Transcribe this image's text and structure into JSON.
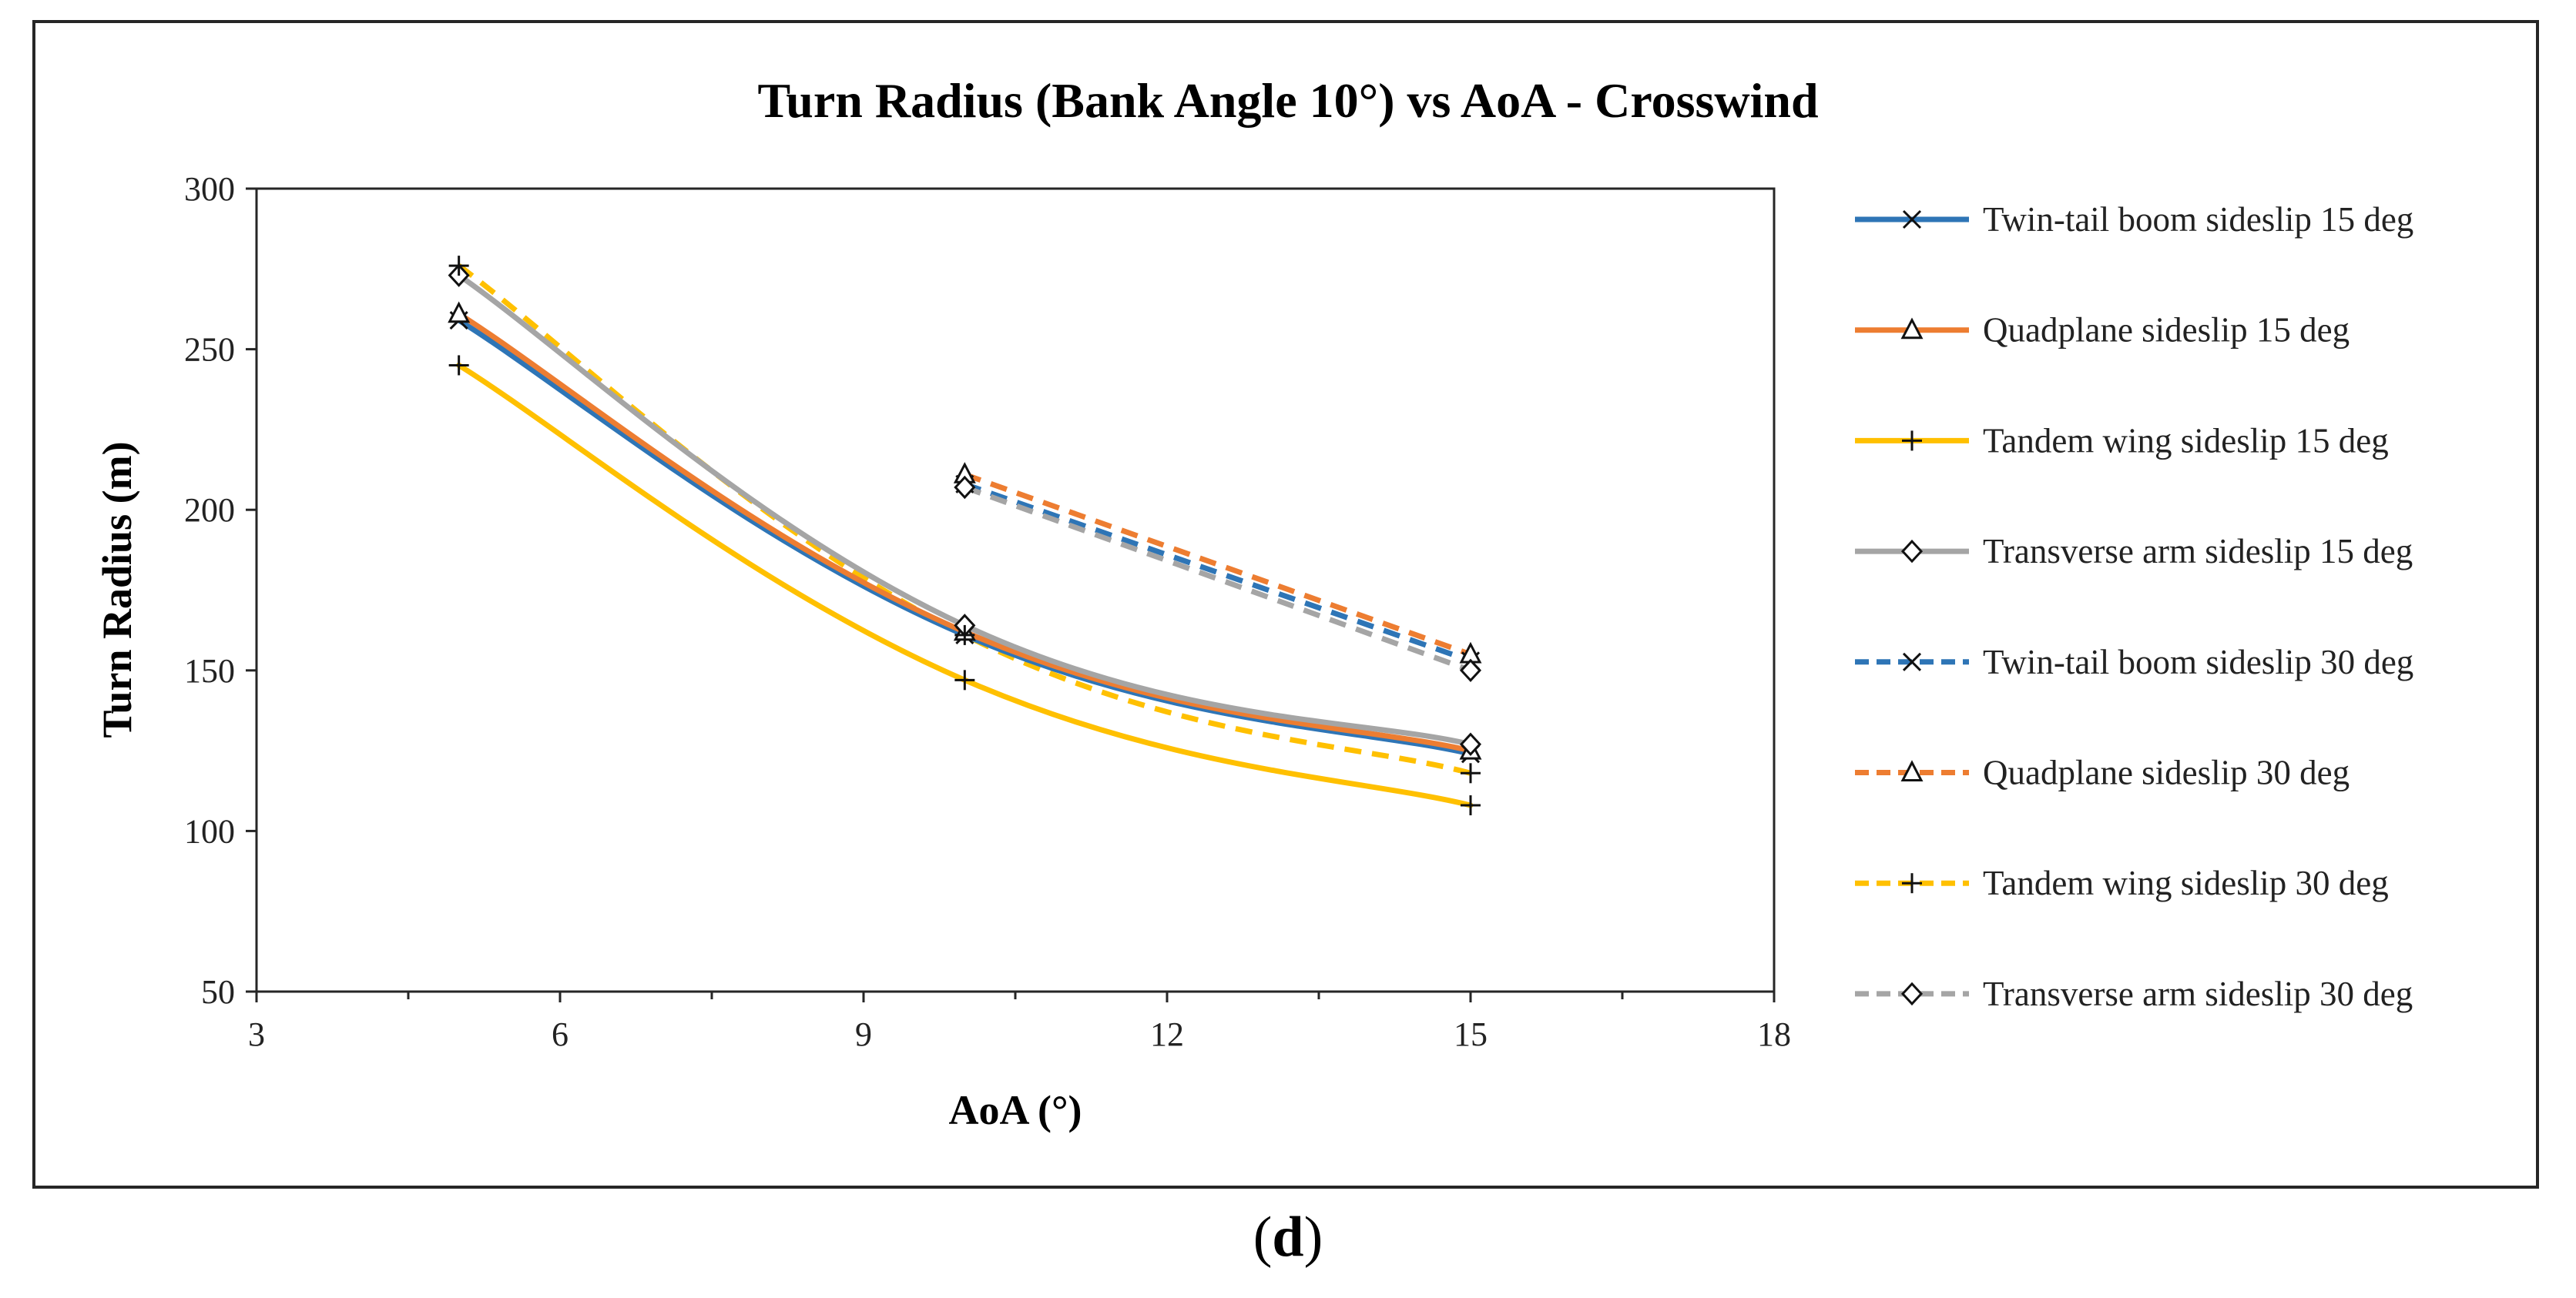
{
  "chart_data": {
    "type": "line",
    "title": "Turn Radius (Bank Angle 10°) vs AoA - Crosswind",
    "xlabel": "AoA (°)",
    "ylabel": "Turn Radius (m)",
    "xlim": [
      3,
      18
    ],
    "ylim": [
      50,
      300
    ],
    "xticks": [
      3,
      6,
      9,
      12,
      15,
      18
    ],
    "yticks": [
      50,
      100,
      150,
      200,
      250,
      300
    ],
    "grid": false,
    "legend_position": "right",
    "series": [
      {
        "name": "Twin-tail boom sideslip 15 deg",
        "color": "#2E75B6",
        "dash": "solid",
        "marker": "x",
        "x": [
          5,
          10,
          15
        ],
        "values": [
          259,
          161,
          124
        ]
      },
      {
        "name": "Quadplane sideslip 15 deg",
        "color": "#ED7D31",
        "dash": "solid",
        "marker": "triangle",
        "x": [
          5,
          10,
          15
        ],
        "values": [
          261,
          162,
          125
        ]
      },
      {
        "name": "Tandem wing sideslip 15 deg",
        "color": "#FFC000",
        "dash": "solid",
        "marker": "plus",
        "x": [
          5,
          10,
          15
        ],
        "values": [
          245,
          147,
          108
        ]
      },
      {
        "name": "Transverse arm sideslip 15 deg",
        "color": "#A5A5A5",
        "dash": "solid",
        "marker": "diamond",
        "x": [
          5,
          10,
          15
        ],
        "values": [
          273,
          164,
          127
        ]
      },
      {
        "name": "Twin-tail boom sideslip 30 deg",
        "color": "#2E75B6",
        "dash": "dashed",
        "marker": "x",
        "x": [
          10,
          15
        ],
        "values": [
          208,
          153
        ]
      },
      {
        "name": "Quadplane sideslip 30 deg",
        "color": "#ED7D31",
        "dash": "dashed",
        "marker": "triangle",
        "x": [
          10,
          15
        ],
        "values": [
          211,
          155
        ]
      },
      {
        "name": "Tandem wing sideslip 30 deg",
        "color": "#FFC000",
        "dash": "dashed",
        "marker": "plus",
        "x": [
          5,
          10,
          15
        ],
        "values": [
          276,
          161,
          118
        ]
      },
      {
        "name": "Transverse arm sideslip 30 deg",
        "color": "#A5A5A5",
        "dash": "dashed",
        "marker": "diamond",
        "x": [
          10,
          15
        ],
        "values": [
          207,
          150
        ]
      }
    ]
  },
  "caption": {
    "open": "(",
    "letter": "d",
    "close": ")"
  }
}
